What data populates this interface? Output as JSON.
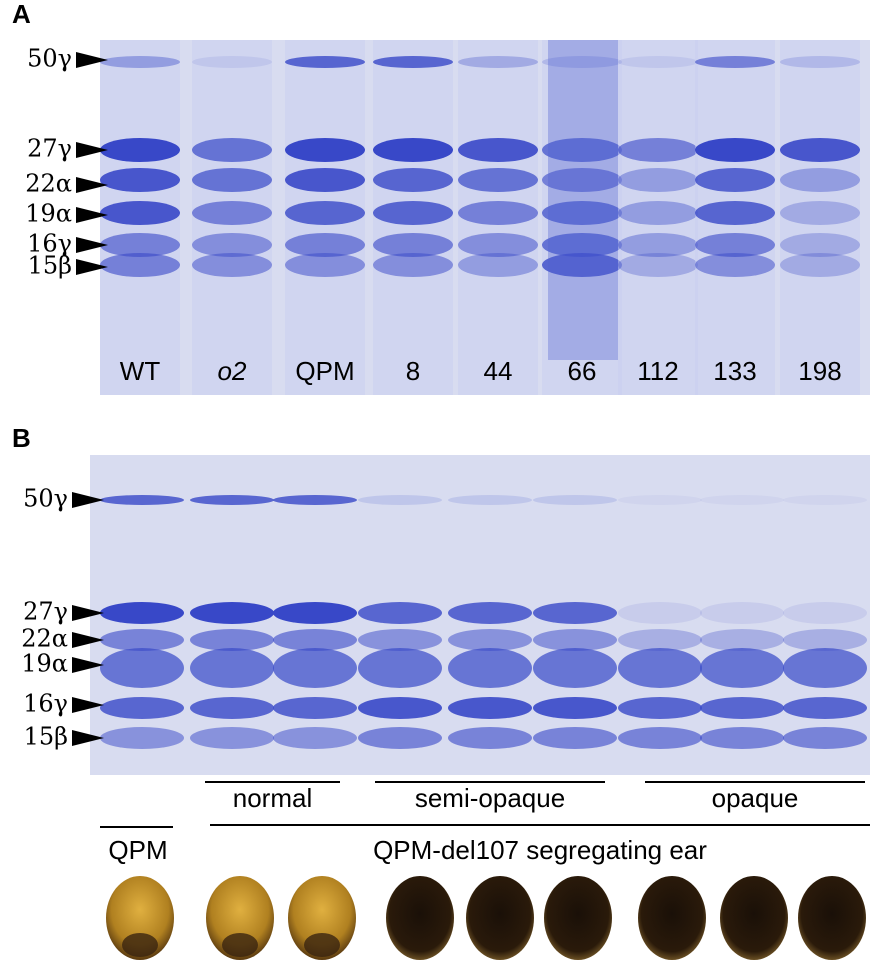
{
  "panel_a": {
    "label": "A",
    "band_labels": [
      "50γ",
      "27γ",
      "22α",
      "19α",
      "16γ",
      "15β"
    ],
    "lane_labels": [
      "WT",
      "o2",
      "QPM",
      "8",
      "44",
      "66",
      "112",
      "133",
      "198"
    ]
  },
  "panel_b": {
    "label": "B",
    "band_labels": [
      "50γ",
      "27γ",
      "22α",
      "19α",
      "16γ",
      "15β"
    ],
    "phenotype_labels": [
      "normal",
      "semi-opaque",
      "opaque"
    ],
    "kernel_labels": [
      "QPM",
      "QPM-del107 segregating ear"
    ]
  }
}
